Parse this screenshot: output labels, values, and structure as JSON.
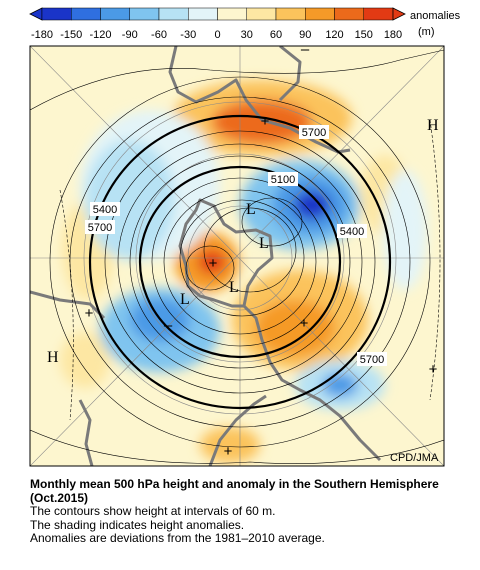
{
  "legend": {
    "ticks": [
      "-180",
      "-150",
      "-120",
      "-90",
      "-60",
      "-30",
      "0",
      "30",
      "60",
      "90",
      "120",
      "150",
      "180"
    ],
    "label": "anomalies",
    "units": "(m)",
    "colors": [
      "#1a34c8",
      "#2f6fe0",
      "#4b9ae6",
      "#7fc4ef",
      "#b7e2f4",
      "#e3f4f8",
      "#fdf6cf",
      "#fde7a3",
      "#fbc35c",
      "#f59a28",
      "#ec6a1b",
      "#e23a14"
    ]
  },
  "contour_labels": [
    "5700",
    "5100",
    "5400",
    "5400",
    "5700",
    "5700"
  ],
  "pressure_markers": [
    "H",
    "H",
    "L",
    "L",
    "L",
    "L"
  ],
  "anomaly_signs": [
    "+",
    "+",
    "+",
    "+",
    "+",
    "+",
    "–",
    "–"
  ],
  "credit": "CPD/JMA",
  "caption": {
    "title": "Monthly mean 500 hPa height and anomaly in the Southern Hemisphere (Oct.2015)",
    "lines": [
      "The contours show height at intervals of 60 m.",
      "The shading indicates height anomalies.",
      "Anomalies are deviations from the 1981–2010 average."
    ]
  }
}
